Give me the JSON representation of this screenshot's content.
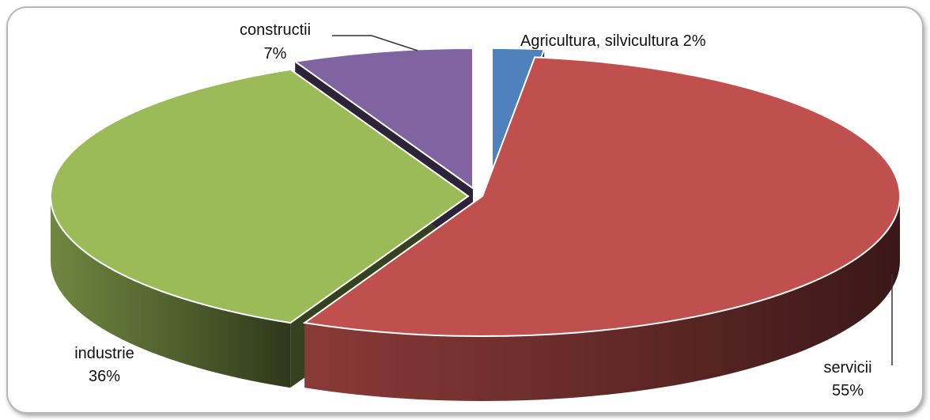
{
  "chart_data": {
    "type": "pie",
    "style": "3d-exploded",
    "legend": "none",
    "slices": [
      {
        "label": "Agricultura, silvicultura",
        "pct_text": "2%",
        "value": 2,
        "color": "#4f81bd"
      },
      {
        "label": "servicii",
        "pct_text": "55%",
        "value": 55,
        "color": "#c0504d"
      },
      {
        "label": "industrie",
        "pct_text": "36%",
        "value": 36,
        "color": "#9bbb59"
      },
      {
        "label": "constructii",
        "pct_text": "7%",
        "value": 7,
        "color": "#8064a2"
      }
    ]
  }
}
